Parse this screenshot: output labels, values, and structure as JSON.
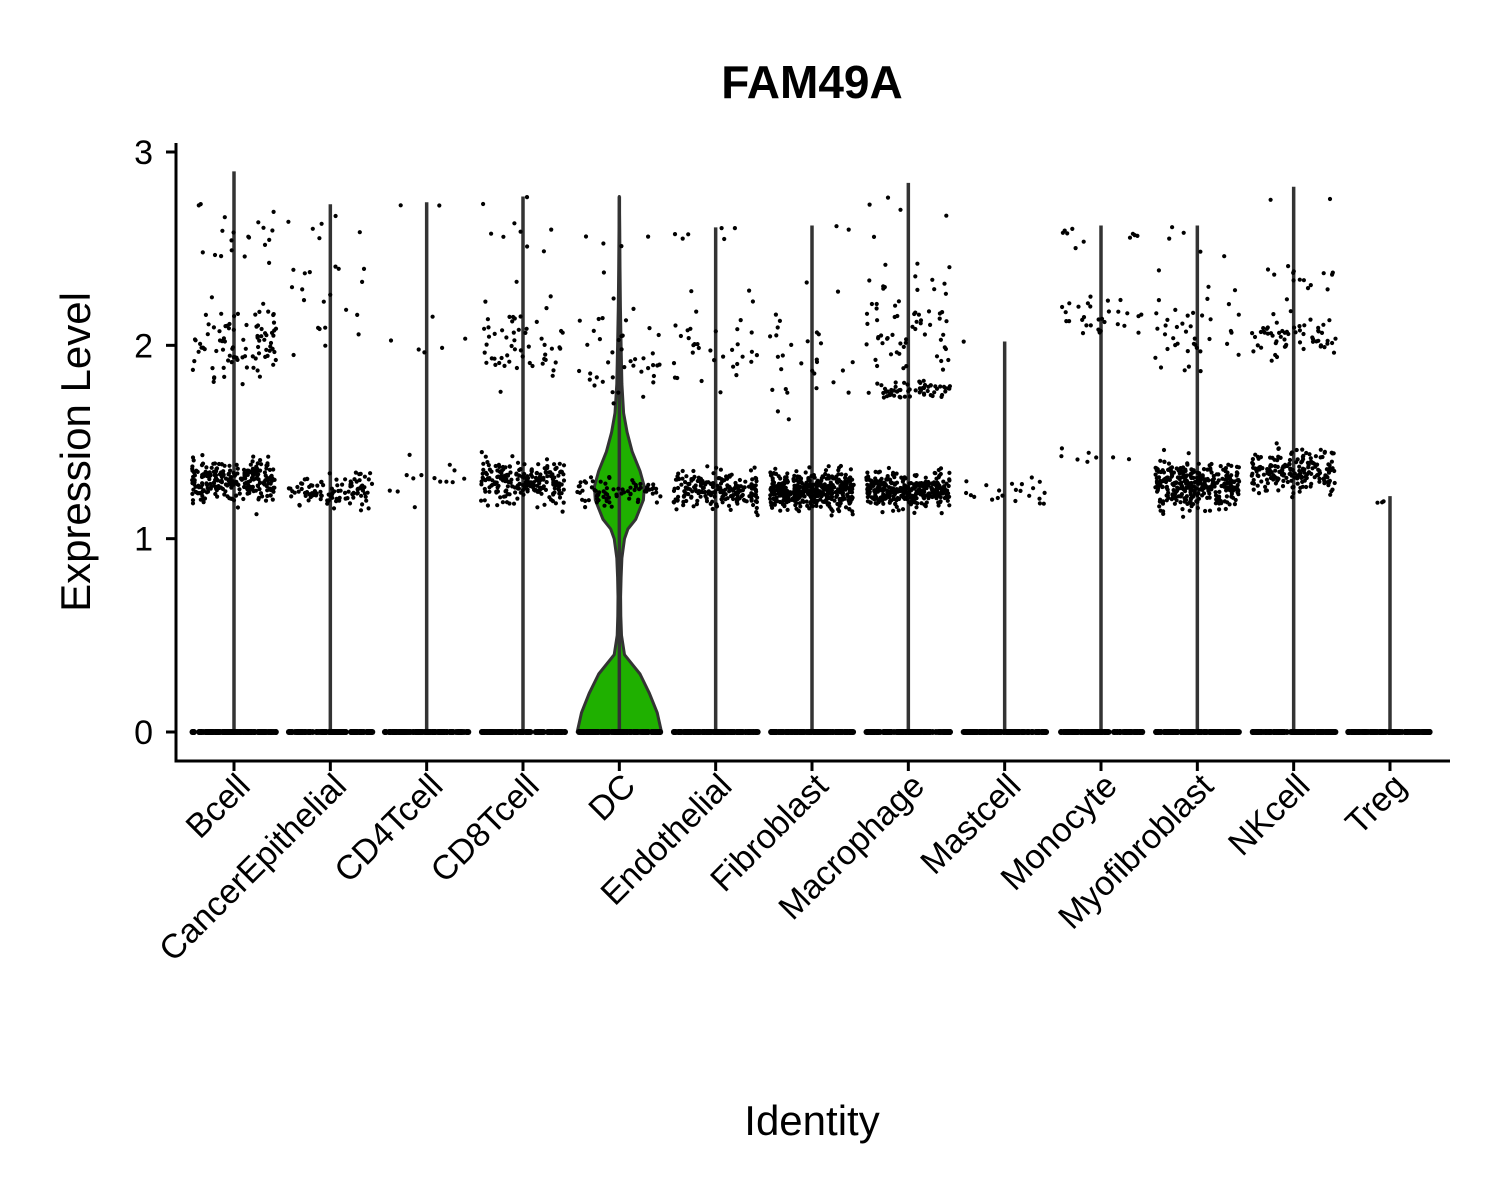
{
  "chart_data": {
    "type": "violin",
    "title": "FAM49A",
    "xlabel": "Identity",
    "ylabel": "Expression Level",
    "ylim": [
      -0.15,
      3.05
    ],
    "yticks": [
      0,
      1,
      2,
      3
    ],
    "categories": [
      "Bcell",
      "CancerEpithelial",
      "CD4Tcell",
      "CD8Tcell",
      "DC",
      "Endothelial",
      "Fibroblast",
      "Macrophage",
      "Mastcell",
      "Monocyte",
      "Myofibroblast",
      "NKcell",
      "Treg"
    ],
    "max_values": [
      2.9,
      2.73,
      2.74,
      2.77,
      2.77,
      2.61,
      2.62,
      2.84,
      2.02,
      2.62,
      2.62,
      2.82,
      1.22
    ],
    "clusters": [
      [
        {
          "c": 1.3,
          "s": 0.08,
          "n": 260
        },
        {
          "c": 2.0,
          "s": 0.15,
          "n": 90
        },
        {
          "c": 2.55,
          "s": 0.15,
          "n": 20
        }
      ],
      [
        {
          "c": 1.25,
          "s": 0.06,
          "n": 110
        },
        {
          "c": 2.2,
          "s": 0.25,
          "n": 20
        },
        {
          "c": 2.62,
          "s": 0.06,
          "n": 6
        }
      ],
      [
        {
          "c": 1.3,
          "s": 0.08,
          "n": 14
        },
        {
          "c": 2.05,
          "s": 0.08,
          "n": 6
        },
        {
          "c": 2.7,
          "s": 0.03,
          "n": 2
        }
      ],
      [
        {
          "c": 1.3,
          "s": 0.08,
          "n": 220
        },
        {
          "c": 2.0,
          "s": 0.13,
          "n": 55
        },
        {
          "c": 2.5,
          "s": 0.2,
          "n": 10
        }
      ],
      [
        {
          "c": 1.25,
          "s": 0.05,
          "n": 75
        },
        {
          "c": 1.95,
          "s": 0.18,
          "n": 40
        },
        {
          "c": 2.5,
          "s": 0.2,
          "n": 6
        }
      ],
      [
        {
          "c": 1.25,
          "s": 0.07,
          "n": 200
        },
        {
          "c": 2.0,
          "s": 0.18,
          "n": 35
        },
        {
          "c": 2.5,
          "s": 0.12,
          "n": 6
        }
      ],
      [
        {
          "c": 1.25,
          "s": 0.07,
          "n": 420
        },
        {
          "c": 1.95,
          "s": 0.22,
          "n": 30
        },
        {
          "c": 2.55,
          "s": 0.08,
          "n": 2
        }
      ],
      [
        {
          "c": 1.25,
          "s": 0.06,
          "n": 360
        },
        {
          "c": 1.77,
          "s": 0.03,
          "n": 60
        },
        {
          "c": 2.05,
          "s": 0.13,
          "n": 50
        },
        {
          "c": 2.35,
          "s": 0.1,
          "n": 15
        },
        {
          "c": 2.7,
          "s": 0.12,
          "n": 5
        }
      ],
      [
        {
          "c": 1.25,
          "s": 0.07,
          "n": 22
        },
        {
          "c": 2.02,
          "s": 0.02,
          "n": 1
        }
      ],
      [
        {
          "c": 2.15,
          "s": 0.1,
          "n": 30
        },
        {
          "c": 2.57,
          "s": 0.03,
          "n": 10
        },
        {
          "c": 1.42,
          "s": 0.03,
          "n": 8
        }
      ],
      [
        {
          "c": 1.28,
          "s": 0.08,
          "n": 340
        },
        {
          "c": 2.05,
          "s": 0.18,
          "n": 40
        },
        {
          "c": 2.5,
          "s": 0.12,
          "n": 6
        }
      ],
      [
        {
          "c": 1.35,
          "s": 0.08,
          "n": 200
        },
        {
          "c": 2.05,
          "s": 0.07,
          "n": 60
        },
        {
          "c": 2.35,
          "s": 0.07,
          "n": 15
        },
        {
          "c": 2.7,
          "s": 0.1,
          "n": 2
        }
      ],
      [
        {
          "c": 1.19,
          "s": 0.03,
          "n": 3
        }
      ]
    ],
    "zero_points_per_group": 120,
    "highlight": {
      "category": "DC",
      "color": "#1FB000",
      "outline_color": "#333333",
      "density": [
        [
          0,
          0.98
        ],
        [
          0.1,
          0.88
        ],
        [
          0.2,
          0.7
        ],
        [
          0.3,
          0.48
        ],
        [
          0.4,
          0.12
        ],
        [
          0.5,
          0.05
        ],
        [
          0.6,
          0.035
        ],
        [
          0.7,
          0.03
        ],
        [
          0.8,
          0.04
        ],
        [
          0.9,
          0.06
        ],
        [
          1.0,
          0.12
        ],
        [
          1.05,
          0.2
        ],
        [
          1.1,
          0.38
        ],
        [
          1.2,
          0.56
        ],
        [
          1.27,
          0.58
        ],
        [
          1.35,
          0.48
        ],
        [
          1.45,
          0.3
        ],
        [
          1.55,
          0.18
        ],
        [
          1.65,
          0.1
        ],
        [
          1.8,
          0.06
        ],
        [
          2.0,
          0.04
        ],
        [
          2.2,
          0.025
        ],
        [
          2.4,
          0.015
        ],
        [
          2.6,
          0.008
        ],
        [
          2.77,
          0.0
        ]
      ]
    },
    "line_color": "#333333",
    "point_color": "#000000"
  }
}
